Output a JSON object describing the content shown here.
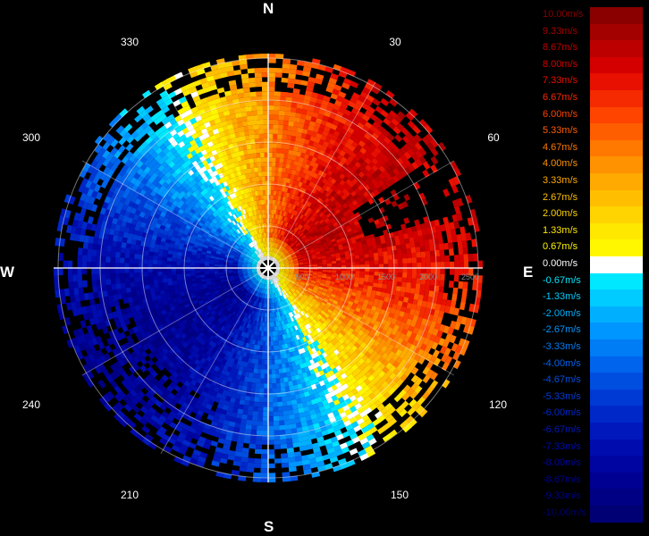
{
  "compass": {
    "north": "N",
    "south": "S",
    "east": "E",
    "west": "W"
  },
  "degree_labels": [
    "30",
    "60",
    "120",
    "150",
    "210",
    "240",
    "300",
    "330"
  ],
  "range_labels": [
    "500",
    "1000",
    "1500",
    "2000",
    "2500"
  ],
  "legend": [
    {
      "label": "10.00m/s",
      "color": "#8a0000"
    },
    {
      "label": "9.33m/s",
      "color": "#a30000"
    },
    {
      "label": "8.67m/s",
      "color": "#bc0000"
    },
    {
      "label": "8.00m/s",
      "color": "#d40000"
    },
    {
      "label": "7.33m/s",
      "color": "#e81000"
    },
    {
      "label": "6.67m/s",
      "color": "#f52a00"
    },
    {
      "label": "6.00m/s",
      "color": "#ff4400"
    },
    {
      "label": "5.33m/s",
      "color": "#ff5e00"
    },
    {
      "label": "4.67m/s",
      "color": "#ff7800"
    },
    {
      "label": "4.00m/s",
      "color": "#ff9200"
    },
    {
      "label": "3.33m/s",
      "color": "#ffaa00"
    },
    {
      "label": "2.67m/s",
      "color": "#ffbf00"
    },
    {
      "label": "2.00m/s",
      "color": "#ffd400"
    },
    {
      "label": "1.33m/s",
      "color": "#ffe800"
    },
    {
      "label": "0.67m/s",
      "color": "#fff700"
    },
    {
      "label": "0.00m/s",
      "color": "#ffffff"
    },
    {
      "label": "-0.67m/s",
      "color": "#00e8ff"
    },
    {
      "label": "-1.33m/s",
      "color": "#00ccff"
    },
    {
      "label": "-2.00m/s",
      "color": "#00b0ff"
    },
    {
      "label": "-2.67m/s",
      "color": "#0096ff"
    },
    {
      "label": "-3.33m/s",
      "color": "#007cf5"
    },
    {
      "label": "-4.00m/s",
      "color": "#0064ec"
    },
    {
      "label": "-4.67m/s",
      "color": "#004ee0"
    },
    {
      "label": "-5.33m/s",
      "color": "#003ad4"
    },
    {
      "label": "-6.00m/s",
      "color": "#0028c8"
    },
    {
      "label": "-6.67m/s",
      "color": "#0018bc"
    },
    {
      "label": "-7.33m/s",
      "color": "#000cae"
    },
    {
      "label": "-8.00m/s",
      "color": "#0004a0"
    },
    {
      "label": "-8.67m/s",
      "color": "#000092"
    },
    {
      "label": "-9.33m/s",
      "color": "#000084"
    },
    {
      "label": "-10.00m/s",
      "color": "#000074"
    }
  ]
}
